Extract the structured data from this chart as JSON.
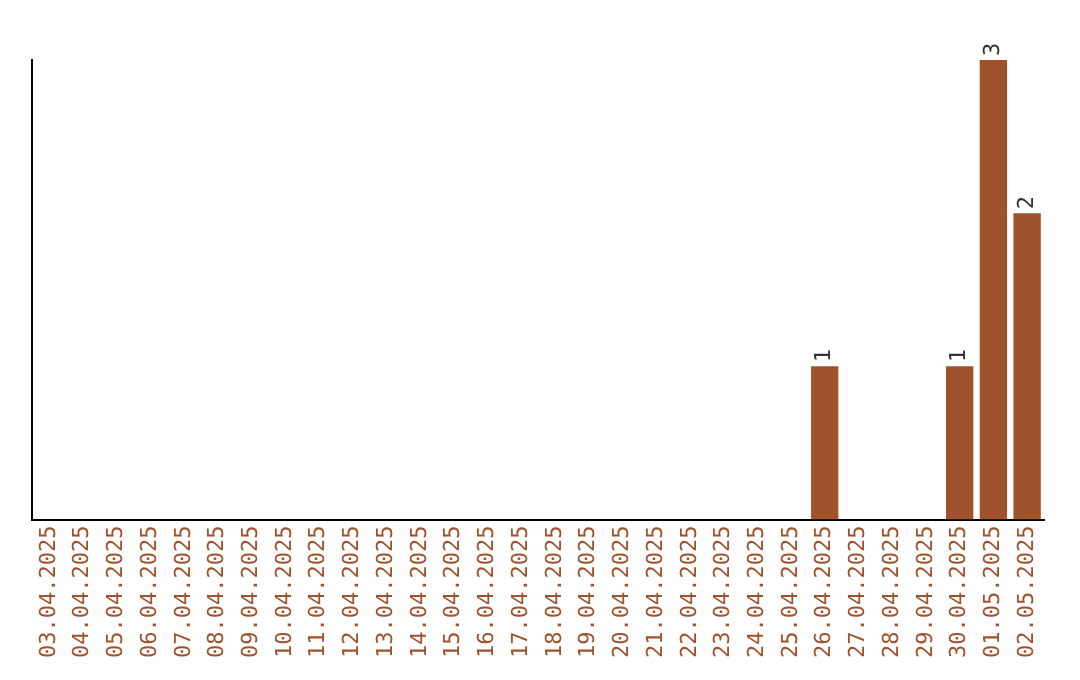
{
  "chart_data": {
    "type": "bar",
    "categories": [
      "03.04.2025",
      "04.04.2025",
      "05.04.2025",
      "06.04.2025",
      "07.04.2025",
      "08.04.2025",
      "09.04.2025",
      "10.04.2025",
      "11.04.2025",
      "12.04.2025",
      "13.04.2025",
      "14.04.2025",
      "15.04.2025",
      "16.04.2025",
      "17.04.2025",
      "18.04.2025",
      "19.04.2025",
      "20.04.2025",
      "21.04.2025",
      "22.04.2025",
      "23.04.2025",
      "24.04.2025",
      "25.04.2025",
      "26.04.2025",
      "27.04.2025",
      "28.04.2025",
      "29.04.2025",
      "30.04.2025",
      "01.05.2025",
      "02.05.2025"
    ],
    "values": [
      null,
      null,
      null,
      null,
      null,
      null,
      null,
      null,
      null,
      null,
      null,
      null,
      null,
      null,
      null,
      null,
      null,
      null,
      null,
      null,
      null,
      null,
      null,
      1,
      null,
      null,
      null,
      1,
      3,
      2
    ],
    "value_labels": [
      null,
      null,
      null,
      null,
      null,
      null,
      null,
      null,
      null,
      null,
      null,
      null,
      null,
      null,
      null,
      null,
      null,
      null,
      null,
      null,
      null,
      null,
      null,
      "1",
      null,
      null,
      null,
      "1",
      "3",
      "2"
    ],
    "color": "#a0522d",
    "grid": false,
    "legend": false,
    "tick_labels": "x"
  }
}
